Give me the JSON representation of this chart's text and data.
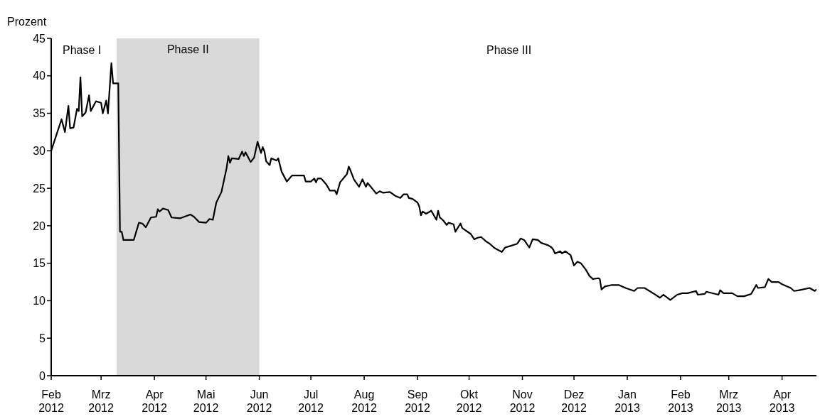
{
  "chart_data": {
    "type": "line",
    "ylabel": "Prozent",
    "annotations": [
      "Phase I",
      "Phase III"
    ],
    "xlim": [
      "2012-02-01",
      "2013-04-21"
    ],
    "xticks": [
      {
        "value": "2012-02-01",
        "label": "Feb 2012"
      },
      {
        "value": "2012-03-01",
        "label": "Mrz 2012"
      },
      {
        "value": "2012-04-01",
        "label": "Apr 2012"
      },
      {
        "value": "2012-05-01",
        "label": "Mai 2012"
      },
      {
        "value": "2012-06-01",
        "label": "Jun 2012"
      },
      {
        "value": "2012-07-01",
        "label": "Jul 2012"
      },
      {
        "value": "2012-08-01",
        "label": "Aug 2012"
      },
      {
        "value": "2012-09-01",
        "label": "Sep 2012"
      },
      {
        "value": "2012-10-01",
        "label": "Okt 2012"
      },
      {
        "value": "2012-11-01",
        "label": "Nov 2012"
      },
      {
        "value": "2012-12-01",
        "label": "Dez 2012"
      },
      {
        "value": "2013-01-01",
        "label": "Jan 2013"
      },
      {
        "value": "2013-02-01",
        "label": "Feb 2013"
      },
      {
        "value": "2013-03-01",
        "label": "Mrz 2013"
      },
      {
        "value": "2013-04-01",
        "label": "Apr 2013"
      }
    ],
    "ylim": [
      0,
      45
    ],
    "yticks": [
      0,
      5,
      10,
      15,
      20,
      25,
      30,
      35,
      40,
      45
    ],
    "grid": false,
    "marker": "none",
    "line_style": "solid",
    "bands": [
      {
        "axis": "x",
        "from": "2012-03-10",
        "to": "2012-06-01",
        "label": "Phase II",
        "color": "#d9d9d9"
      }
    ],
    "series": [
      {
        "color": "#000000",
        "x": [
          "2012-02-01",
          "2012-02-07",
          "2012-02-09",
          "2012-02-11",
          "2012-02-12",
          "2012-02-14",
          "2012-02-16",
          "2012-02-17",
          "2012-02-18",
          "2012-02-19",
          "2012-02-21",
          "2012-02-23",
          "2012-02-24",
          "2012-02-27",
          "2012-03-01",
          "2012-03-02",
          "2012-03-04",
          "2012-03-05",
          "2012-03-07",
          "2012-03-08",
          "2012-03-11",
          "2012-03-12",
          "2012-03-13",
          "2012-03-14",
          "2012-03-20",
          "2012-03-23",
          "2012-03-25",
          "2012-03-27",
          "2012-03-30",
          "2012-04-02",
          "2012-04-03",
          "2012-04-04",
          "2012-04-06",
          "2012-04-09",
          "2012-04-11",
          "2012-04-16",
          "2012-04-22",
          "2012-04-24",
          "2012-04-27",
          "2012-05-01",
          "2012-05-03",
          "2012-05-05",
          "2012-05-07",
          "2012-05-10",
          "2012-05-13",
          "2012-05-14",
          "2012-05-15",
          "2012-05-16",
          "2012-05-20",
          "2012-05-22",
          "2012-05-23",
          "2012-05-24",
          "2012-05-27",
          "2012-05-29",
          "2012-05-31",
          "2012-06-02",
          "2012-06-03",
          "2012-06-04",
          "2012-06-05",
          "2012-06-07",
          "2012-06-08",
          "2012-06-11",
          "2012-06-12",
          "2012-06-14",
          "2012-06-17",
          "2012-06-20",
          "2012-06-27",
          "2012-06-28",
          "2012-07-01",
          "2012-07-03",
          "2012-07-04",
          "2012-07-05",
          "2012-07-07",
          "2012-07-10",
          "2012-07-12",
          "2012-07-15",
          "2012-07-16",
          "2012-07-18",
          "2012-07-22",
          "2012-07-23",
          "2012-07-24",
          "2012-07-26",
          "2012-07-29",
          "2012-07-31",
          "2012-08-02",
          "2012-08-03",
          "2012-08-07",
          "2012-08-08",
          "2012-08-10",
          "2012-08-12",
          "2012-08-16",
          "2012-08-19",
          "2012-08-22",
          "2012-08-24",
          "2012-08-26",
          "2012-08-27",
          "2012-08-29",
          "2012-09-01",
          "2012-09-02",
          "2012-09-03",
          "2012-09-04",
          "2012-09-06",
          "2012-09-09",
          "2012-09-12",
          "2012-09-13",
          "2012-09-14",
          "2012-09-16",
          "2012-09-18",
          "2012-09-19",
          "2012-09-22",
          "2012-09-23",
          "2012-09-26",
          "2012-09-27",
          "2012-10-02",
          "2012-10-04",
          "2012-10-06",
          "2012-10-08",
          "2012-10-11",
          "2012-10-13",
          "2012-10-16",
          "2012-10-20",
          "2012-10-22",
          "2012-10-25",
          "2012-10-29",
          "2012-10-31",
          "2012-11-02",
          "2012-11-05",
          "2012-11-07",
          "2012-11-10",
          "2012-11-12",
          "2012-11-16",
          "2012-11-18",
          "2012-11-19",
          "2012-11-20",
          "2012-11-23",
          "2012-11-24",
          "2012-11-26",
          "2012-11-29",
          "2012-12-01",
          "2012-12-03",
          "2012-12-05",
          "2012-12-08",
          "2012-12-10",
          "2012-12-12",
          "2012-12-15",
          "2012-12-16",
          "2012-12-17",
          "2012-12-19",
          "2012-12-23",
          "2012-12-27",
          "2012-12-31",
          "2013-01-05",
          "2013-01-07",
          "2013-01-11",
          "2013-01-16",
          "2013-01-20",
          "2013-01-22",
          "2013-01-26",
          "2013-01-30",
          "2013-02-02",
          "2013-02-05",
          "2013-02-10",
          "2013-02-11",
          "2013-02-15",
          "2013-02-16",
          "2013-02-23",
          "2013-02-24",
          "2013-02-26",
          "2013-03-03",
          "2013-03-06",
          "2013-03-10",
          "2013-03-14",
          "2013-03-17",
          "2013-03-18",
          "2013-03-22",
          "2013-03-24",
          "2013-03-26",
          "2013-03-30",
          "2013-04-01",
          "2013-04-06",
          "2013-04-08",
          "2013-04-11",
          "2013-04-17",
          "2013-04-20",
          "2013-04-21"
        ],
        "values": [
          30.0,
          34.2,
          32.5,
          36.0,
          33.0,
          33.1,
          35.6,
          35.3,
          39.8,
          34.6,
          35.1,
          37.4,
          35.3,
          36.6,
          36.4,
          35.0,
          36.7,
          35.0,
          41.7,
          39.0,
          39.0,
          19.2,
          19.2,
          18.1,
          18.1,
          20.4,
          20.3,
          19.8,
          21.1,
          21.2,
          22.2,
          21.9,
          22.3,
          22.1,
          21.1,
          21.0,
          21.5,
          21.2,
          20.5,
          20.4,
          20.9,
          20.8,
          23.1,
          24.5,
          27.7,
          29.3,
          28.4,
          29.0,
          28.9,
          29.9,
          29.3,
          29.8,
          28.5,
          29.1,
          31.2,
          29.7,
          30.5,
          29.9,
          28.6,
          28.1,
          29.0,
          28.7,
          29.0,
          27.2,
          25.9,
          26.7,
          26.7,
          25.9,
          25.9,
          26.3,
          25.8,
          26.3,
          26.3,
          25.5,
          24.7,
          24.7,
          24.2,
          25.8,
          26.9,
          27.9,
          27.4,
          26.2,
          25.2,
          26.2,
          25.2,
          25.7,
          24.6,
          24.3,
          24.6,
          24.4,
          24.5,
          24.0,
          23.7,
          24.2,
          24.2,
          23.7,
          23.6,
          23.1,
          22.6,
          21.4,
          21.9,
          21.6,
          22.0,
          20.8,
          22.0,
          21.1,
          20.7,
          20.1,
          20.4,
          20.2,
          19.2,
          20.3,
          19.7,
          18.9,
          18.2,
          18.4,
          18.5,
          17.9,
          17.6,
          17.0,
          16.5,
          17.1,
          17.3,
          17.6,
          18.3,
          18.1,
          17.1,
          18.2,
          18.1,
          17.7,
          17.4,
          17.1,
          16.8,
          16.3,
          16.6,
          16.3,
          16.6,
          16.1,
          14.7,
          15.2,
          15.0,
          14.1,
          13.3,
          12.9,
          13.0,
          12.9,
          11.5,
          11.9,
          12.1,
          12.1,
          11.7,
          11.3,
          11.7,
          11.7,
          11.0,
          10.4,
          10.8,
          10.1,
          10.8,
          11.0,
          11.0,
          11.3,
          10.8,
          10.9,
          11.2,
          10.8,
          11.4,
          11.0,
          11.0,
          10.6,
          10.6,
          10.9,
          12.1,
          11.7,
          11.8,
          12.9,
          12.5,
          12.5,
          12.2,
          11.7,
          11.3,
          11.4,
          11.7,
          11.3,
          11.5
        ]
      }
    ]
  }
}
